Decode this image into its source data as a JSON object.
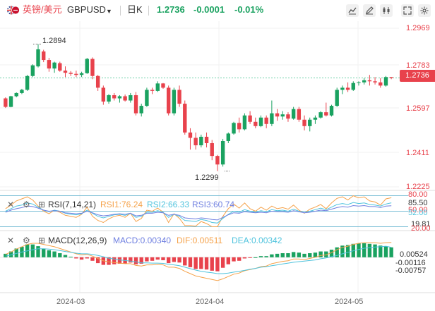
{
  "toolbar": {
    "symbol_label": "英镑/美元",
    "symbol_code": "GBPUSD",
    "timeframe": "日K",
    "last_price": "1.2736",
    "change": "-0.0001",
    "change_pct": "-0.01%",
    "colors": {
      "price": "#1aa260",
      "change": "#1aa260"
    }
  },
  "rsi_panel": {
    "title": "RSI(7,14,21)",
    "rsi1_label": "RSI1:76.24",
    "rsi2_label": "RSI2:66.33",
    "rsi3_label": "RSI3:60.74",
    "axis_labels": [
      "80.00",
      "85.50",
      "50.00",
      "52.00",
      "19.81",
      "20.00"
    ]
  },
  "macd_panel": {
    "title": "MACD(12,26,9)",
    "macd_label": "MACD:0.00340",
    "dif_label": "DIF:0.00511",
    "dea_label": "DEA:0.00342",
    "axis_labels": [
      "0.00524",
      "-0.00116",
      "-0.00757"
    ]
  },
  "x_axis": {
    "labels": [
      "2024-03",
      "2024-04",
      "2024-05"
    ]
  },
  "colors": {
    "up": "#1aa260",
    "down": "#e8424c",
    "rsi1": "#f5a24a",
    "rsi2": "#4fc3dd",
    "rsi3": "#6f7fe0",
    "dif": "#f5a24a",
    "dea": "#4fc3dd"
  },
  "chart_data": {
    "type": "candlestick",
    "y_axis_labels": [
      "1.2969",
      "1.2783",
      "1.2597",
      "1.2411",
      "1.2225"
    ],
    "ylim": [
      1.2225,
      1.2969
    ],
    "current_price": 1.2736,
    "current_price_label": "1.2736",
    "annotations": [
      {
        "text": "1.2894",
        "value": 1.2894
      },
      {
        "text": "1.2299",
        "value": 1.2299
      }
    ],
    "candles": [
      [
        1.264,
        1.2645,
        1.2595,
        1.26
      ],
      [
        1.26,
        1.2652,
        1.2598,
        1.265
      ],
      [
        1.265,
        1.2668,
        1.2645,
        1.2665
      ],
      [
        1.2665,
        1.2685,
        1.266,
        1.268
      ],
      [
        1.268,
        1.275,
        1.2675,
        1.2745
      ],
      [
        1.2745,
        1.28,
        1.274,
        1.2795
      ],
      [
        1.279,
        1.2894,
        1.2785,
        1.287
      ],
      [
        1.286,
        1.2868,
        1.281,
        1.282
      ],
      [
        1.282,
        1.283,
        1.2765,
        1.278
      ],
      [
        1.278,
        1.2812,
        1.276,
        1.2808
      ],
      [
        1.2805,
        1.2812,
        1.2765,
        1.277
      ],
      [
        1.277,
        1.279,
        1.274,
        1.276
      ],
      [
        1.276,
        1.2768,
        1.2745,
        1.2755
      ],
      [
        1.2755,
        1.277,
        1.274,
        1.275
      ],
      [
        1.275,
        1.2765,
        1.274,
        1.2758
      ],
      [
        1.2758,
        1.283,
        1.2755,
        1.2825
      ],
      [
        1.2825,
        1.2832,
        1.273,
        1.2745
      ],
      [
        1.2745,
        1.275,
        1.2675,
        1.269
      ],
      [
        1.269,
        1.27,
        1.261,
        1.2625
      ],
      [
        1.2625,
        1.266,
        1.2615,
        1.2655
      ],
      [
        1.2655,
        1.2665,
        1.263,
        1.264
      ],
      [
        1.264,
        1.2655,
        1.262,
        1.265
      ],
      [
        1.265,
        1.2658,
        1.2625,
        1.263
      ],
      [
        1.263,
        1.2665,
        1.262,
        1.2655
      ],
      [
        1.2655,
        1.267,
        1.256,
        1.257
      ],
      [
        1.257,
        1.2615,
        1.2555,
        1.2605
      ],
      [
        1.2605,
        1.269,
        1.26,
        1.268
      ],
      [
        1.268,
        1.269,
        1.266,
        1.2675
      ],
      [
        1.2675,
        1.272,
        1.267,
        1.271
      ],
      [
        1.271,
        1.2712,
        1.2685,
        1.269
      ],
      [
        1.269,
        1.27,
        1.256,
        1.257
      ],
      [
        1.257,
        1.269,
        1.256,
        1.268
      ],
      [
        1.268,
        1.27,
        1.26,
        1.2615
      ],
      [
        1.2615,
        1.263,
        1.247,
        1.248
      ],
      [
        1.248,
        1.25,
        1.24,
        1.2455
      ],
      [
        1.2455,
        1.248,
        1.24,
        1.242
      ],
      [
        1.242,
        1.247,
        1.241,
        1.246
      ],
      [
        1.246,
        1.248,
        1.241,
        1.243
      ],
      [
        1.243,
        1.2445,
        1.235,
        1.237
      ],
      [
        1.237,
        1.2375,
        1.2299,
        1.233
      ],
      [
        1.233,
        1.245,
        1.232,
        1.244
      ],
      [
        1.244,
        1.248,
        1.243,
        1.2475
      ],
      [
        1.2475,
        1.253,
        1.247,
        1.2525
      ],
      [
        1.2525,
        1.255,
        1.248,
        1.2495
      ],
      [
        1.2495,
        1.257,
        1.249,
        1.256
      ],
      [
        1.256,
        1.258,
        1.252,
        1.253
      ],
      [
        1.253,
        1.255,
        1.25,
        1.251
      ],
      [
        1.251,
        1.256,
        1.2505,
        1.255
      ],
      [
        1.255,
        1.256,
        1.25,
        1.252
      ],
      [
        1.252,
        1.263,
        1.251,
        1.257
      ],
      [
        1.257,
        1.259,
        1.2535,
        1.2555
      ],
      [
        1.2555,
        1.258,
        1.254,
        1.2565
      ],
      [
        1.2565,
        1.2575,
        1.253,
        1.2545
      ],
      [
        1.2545,
        1.26,
        1.254,
        1.259
      ],
      [
        1.259,
        1.26,
        1.253,
        1.254
      ],
      [
        1.254,
        1.256,
        1.249,
        1.251
      ],
      [
        1.251,
        1.255,
        1.2485,
        1.254
      ],
      [
        1.254,
        1.256,
        1.252,
        1.255
      ],
      [
        1.255,
        1.258,
        1.2545,
        1.2575
      ],
      [
        1.2575,
        1.262,
        1.2555,
        1.256
      ],
      [
        1.256,
        1.261,
        1.2555,
        1.2605
      ],
      [
        1.2605,
        1.269,
        1.26,
        1.268
      ],
      [
        1.268,
        1.27,
        1.266,
        1.269
      ],
      [
        1.269,
        1.2715,
        1.267,
        1.268
      ],
      [
        1.268,
        1.272,
        1.2675,
        1.2712
      ],
      [
        1.2712,
        1.272,
        1.27,
        1.2715
      ],
      [
        1.2715,
        1.2735,
        1.2705,
        1.2725
      ],
      [
        1.2725,
        1.275,
        1.27,
        1.272
      ],
      [
        1.272,
        1.274,
        1.2705,
        1.2715
      ],
      [
        1.2715,
        1.2735,
        1.269,
        1.27
      ],
      [
        1.27,
        1.2745,
        1.2695,
        1.274
      ],
      [
        1.274,
        1.274,
        1.273,
        1.2736
      ]
    ],
    "rsi": {
      "rsi1": [
        55,
        62,
        70,
        74,
        78,
        72,
        60,
        50,
        45,
        52,
        48,
        42,
        40,
        38,
        44,
        58,
        40,
        32,
        28,
        35,
        40,
        42,
        38,
        46,
        30,
        36,
        52,
        50,
        56,
        48,
        28,
        45,
        36,
        22,
        22,
        21,
        30,
        26,
        20,
        19.81,
        40,
        55,
        64,
        56,
        66,
        55,
        50,
        58,
        52,
        60,
        55,
        57,
        54,
        62,
        52,
        46,
        54,
        58,
        63,
        55,
        66,
        75,
        78,
        72,
        80,
        76,
        78,
        70,
        68,
        62,
        74,
        76.24
      ],
      "rsi2": [
        50,
        55,
        60,
        62,
        66,
        64,
        58,
        52,
        49,
        52,
        50,
        46,
        44,
        43,
        45,
        52,
        46,
        40,
        37,
        40,
        43,
        44,
        42,
        46,
        38,
        40,
        48,
        48,
        51,
        48,
        38,
        44,
        40,
        32,
        31,
        30,
        34,
        32,
        28,
        27,
        36,
        44,
        50,
        48,
        53,
        50,
        48,
        51,
        49,
        53,
        51,
        52,
        50,
        54,
        50,
        47,
        50,
        53,
        56,
        53,
        58,
        63,
        65,
        63,
        67,
        65,
        66,
        63,
        62,
        60,
        64,
        66.33
      ],
      "rsi3": [
        48,
        52,
        55,
        57,
        60,
        59,
        56,
        52,
        50,
        51,
        50,
        47,
        46,
        45,
        46,
        50,
        47,
        43,
        41,
        42,
        44,
        45,
        44,
        46,
        41,
        42,
        46,
        46,
        48,
        47,
        42,
        44,
        42,
        37,
        36,
        35,
        37,
        36,
        34,
        33,
        38,
        43,
        47,
        46,
        49,
        48,
        47,
        48,
        47,
        50,
        49,
        49,
        48,
        51,
        49,
        47,
        48,
        50,
        52,
        51,
        54,
        57,
        59,
        58,
        61,
        60,
        61,
        59,
        59,
        57,
        60,
        60.74
      ]
    },
    "macd": {
      "hist": [
        0.0012,
        0.002,
        0.003,
        0.0036,
        0.0044,
        0.0044,
        0.0038,
        0.003,
        0.0024,
        0.002,
        0.0014,
        0.0008,
        0.0002,
        -0.0004,
        -0.0008,
        -0.0004,
        -0.0012,
        -0.002,
        -0.0026,
        -0.0026,
        -0.0024,
        -0.0022,
        -0.0022,
        -0.0018,
        -0.0024,
        -0.0022,
        -0.0014,
        -0.0012,
        -0.0008,
        -0.001,
        -0.002,
        -0.0016,
        -0.0018,
        -0.0028,
        -0.0034,
        -0.004,
        -0.004,
        -0.0042,
        -0.0046,
        -0.0048,
        -0.0036,
        -0.0024,
        -0.0014,
        -0.0012,
        -0.0004,
        -0.0002,
        0.0,
        0.0004,
        0.0004,
        0.001,
        0.0012,
        0.0014,
        0.0014,
        0.0018,
        0.0016,
        0.0012,
        0.0014,
        0.0016,
        0.002,
        0.002,
        0.0026,
        0.0034,
        0.004,
        0.0042,
        0.0046,
        0.0048,
        0.0048,
        0.0046,
        0.0044,
        0.004,
        0.0038,
        0.0034
      ],
      "dif": [
        0.001,
        0.0018,
        0.0028,
        0.0036,
        0.0044,
        0.0048,
        0.0048,
        0.0044,
        0.004,
        0.0036,
        0.003,
        0.0024,
        0.0018,
        0.0012,
        0.0008,
        0.001,
        0.0004,
        -0.0004,
        -0.0012,
        -0.0016,
        -0.0018,
        -0.002,
        -0.0022,
        -0.0022,
        -0.0028,
        -0.003,
        -0.0026,
        -0.0026,
        -0.0024,
        -0.0026,
        -0.0034,
        -0.0034,
        -0.0038,
        -0.0048,
        -0.0056,
        -0.0064,
        -0.0068,
        -0.0072,
        -0.0076,
        -0.008,
        -0.0074,
        -0.0066,
        -0.0058,
        -0.0054,
        -0.0046,
        -0.0042,
        -0.0038,
        -0.0032,
        -0.003,
        -0.0022,
        -0.0018,
        -0.0014,
        -0.0012,
        -0.0006,
        -0.0006,
        -0.0008,
        -0.0004,
        0.0,
        0.0006,
        0.0008,
        0.0016,
        0.0026,
        0.0034,
        0.0038,
        0.0044,
        0.0048,
        0.005,
        0.005,
        0.005,
        0.0048,
        0.005,
        0.00511
      ],
      "dea": [
        0.0004,
        0.0008,
        0.0013,
        0.0018,
        0.0022,
        0.0026,
        0.0029,
        0.0029,
        0.0028,
        0.0026,
        0.0023,
        0.002,
        0.0017,
        0.0014,
        0.0012,
        0.0012,
        0.001,
        0.0006,
        0.0002,
        -0.0003,
        -0.0006,
        -0.0009,
        -0.0011,
        -0.0013,
        -0.0016,
        -0.0019,
        -0.0019,
        -0.002,
        -0.002,
        -0.0021,
        -0.0024,
        -0.0026,
        -0.0029,
        -0.0034,
        -0.0039,
        -0.0044,
        -0.0048,
        -0.0051,
        -0.0053,
        -0.0056,
        -0.0056,
        -0.0054,
        -0.0051,
        -0.0048,
        -0.0045,
        -0.0041,
        -0.0038,
        -0.0034,
        -0.0032,
        -0.0029,
        -0.0026,
        -0.0023,
        -0.002,
        -0.0017,
        -0.0015,
        -0.0013,
        -0.0011,
        -0.0009,
        -0.0005,
        -0.0002,
        0.0002,
        0.0006,
        0.0012,
        0.0017,
        0.0022,
        0.0027,
        0.0031,
        0.0033,
        0.0035,
        0.0036,
        0.0038,
        0.00342
      ]
    }
  }
}
